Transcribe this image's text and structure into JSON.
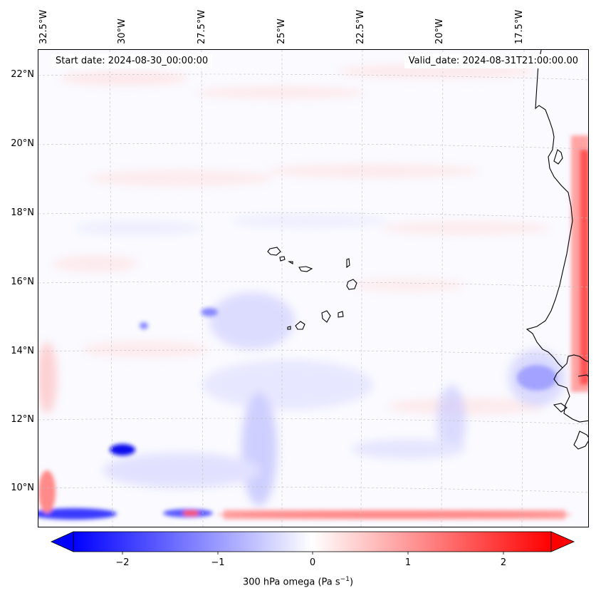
{
  "map": {
    "start_date": "Start date: 2024-08-30_00:00:00",
    "valid_date": "Valid_date: 2024-08-31T21:00:00.00",
    "lon_labels": [
      "32.5°W",
      "30°W",
      "27.5°W",
      "25°W",
      "22.5°W",
      "20°W",
      "17.5°W"
    ],
    "lat_labels": [
      "22°N",
      "20°N",
      "18°N",
      "16°N",
      "14°N",
      "12°N",
      "10°N"
    ],
    "variable": "300 hPa omega",
    "colormap": "bwr",
    "colors": {
      "low": "#0000ff",
      "mid": "#ffffff",
      "high": "#ff0000",
      "coast": "#000000"
    }
  },
  "colorbar": {
    "ticks": [
      "−2",
      "−1",
      "0",
      "1",
      "2"
    ],
    "range": [
      -2.6,
      2.6
    ],
    "label_main": "300 hPa omega (Pa s",
    "label_exp": "−1",
    "label_end": ")"
  }
}
